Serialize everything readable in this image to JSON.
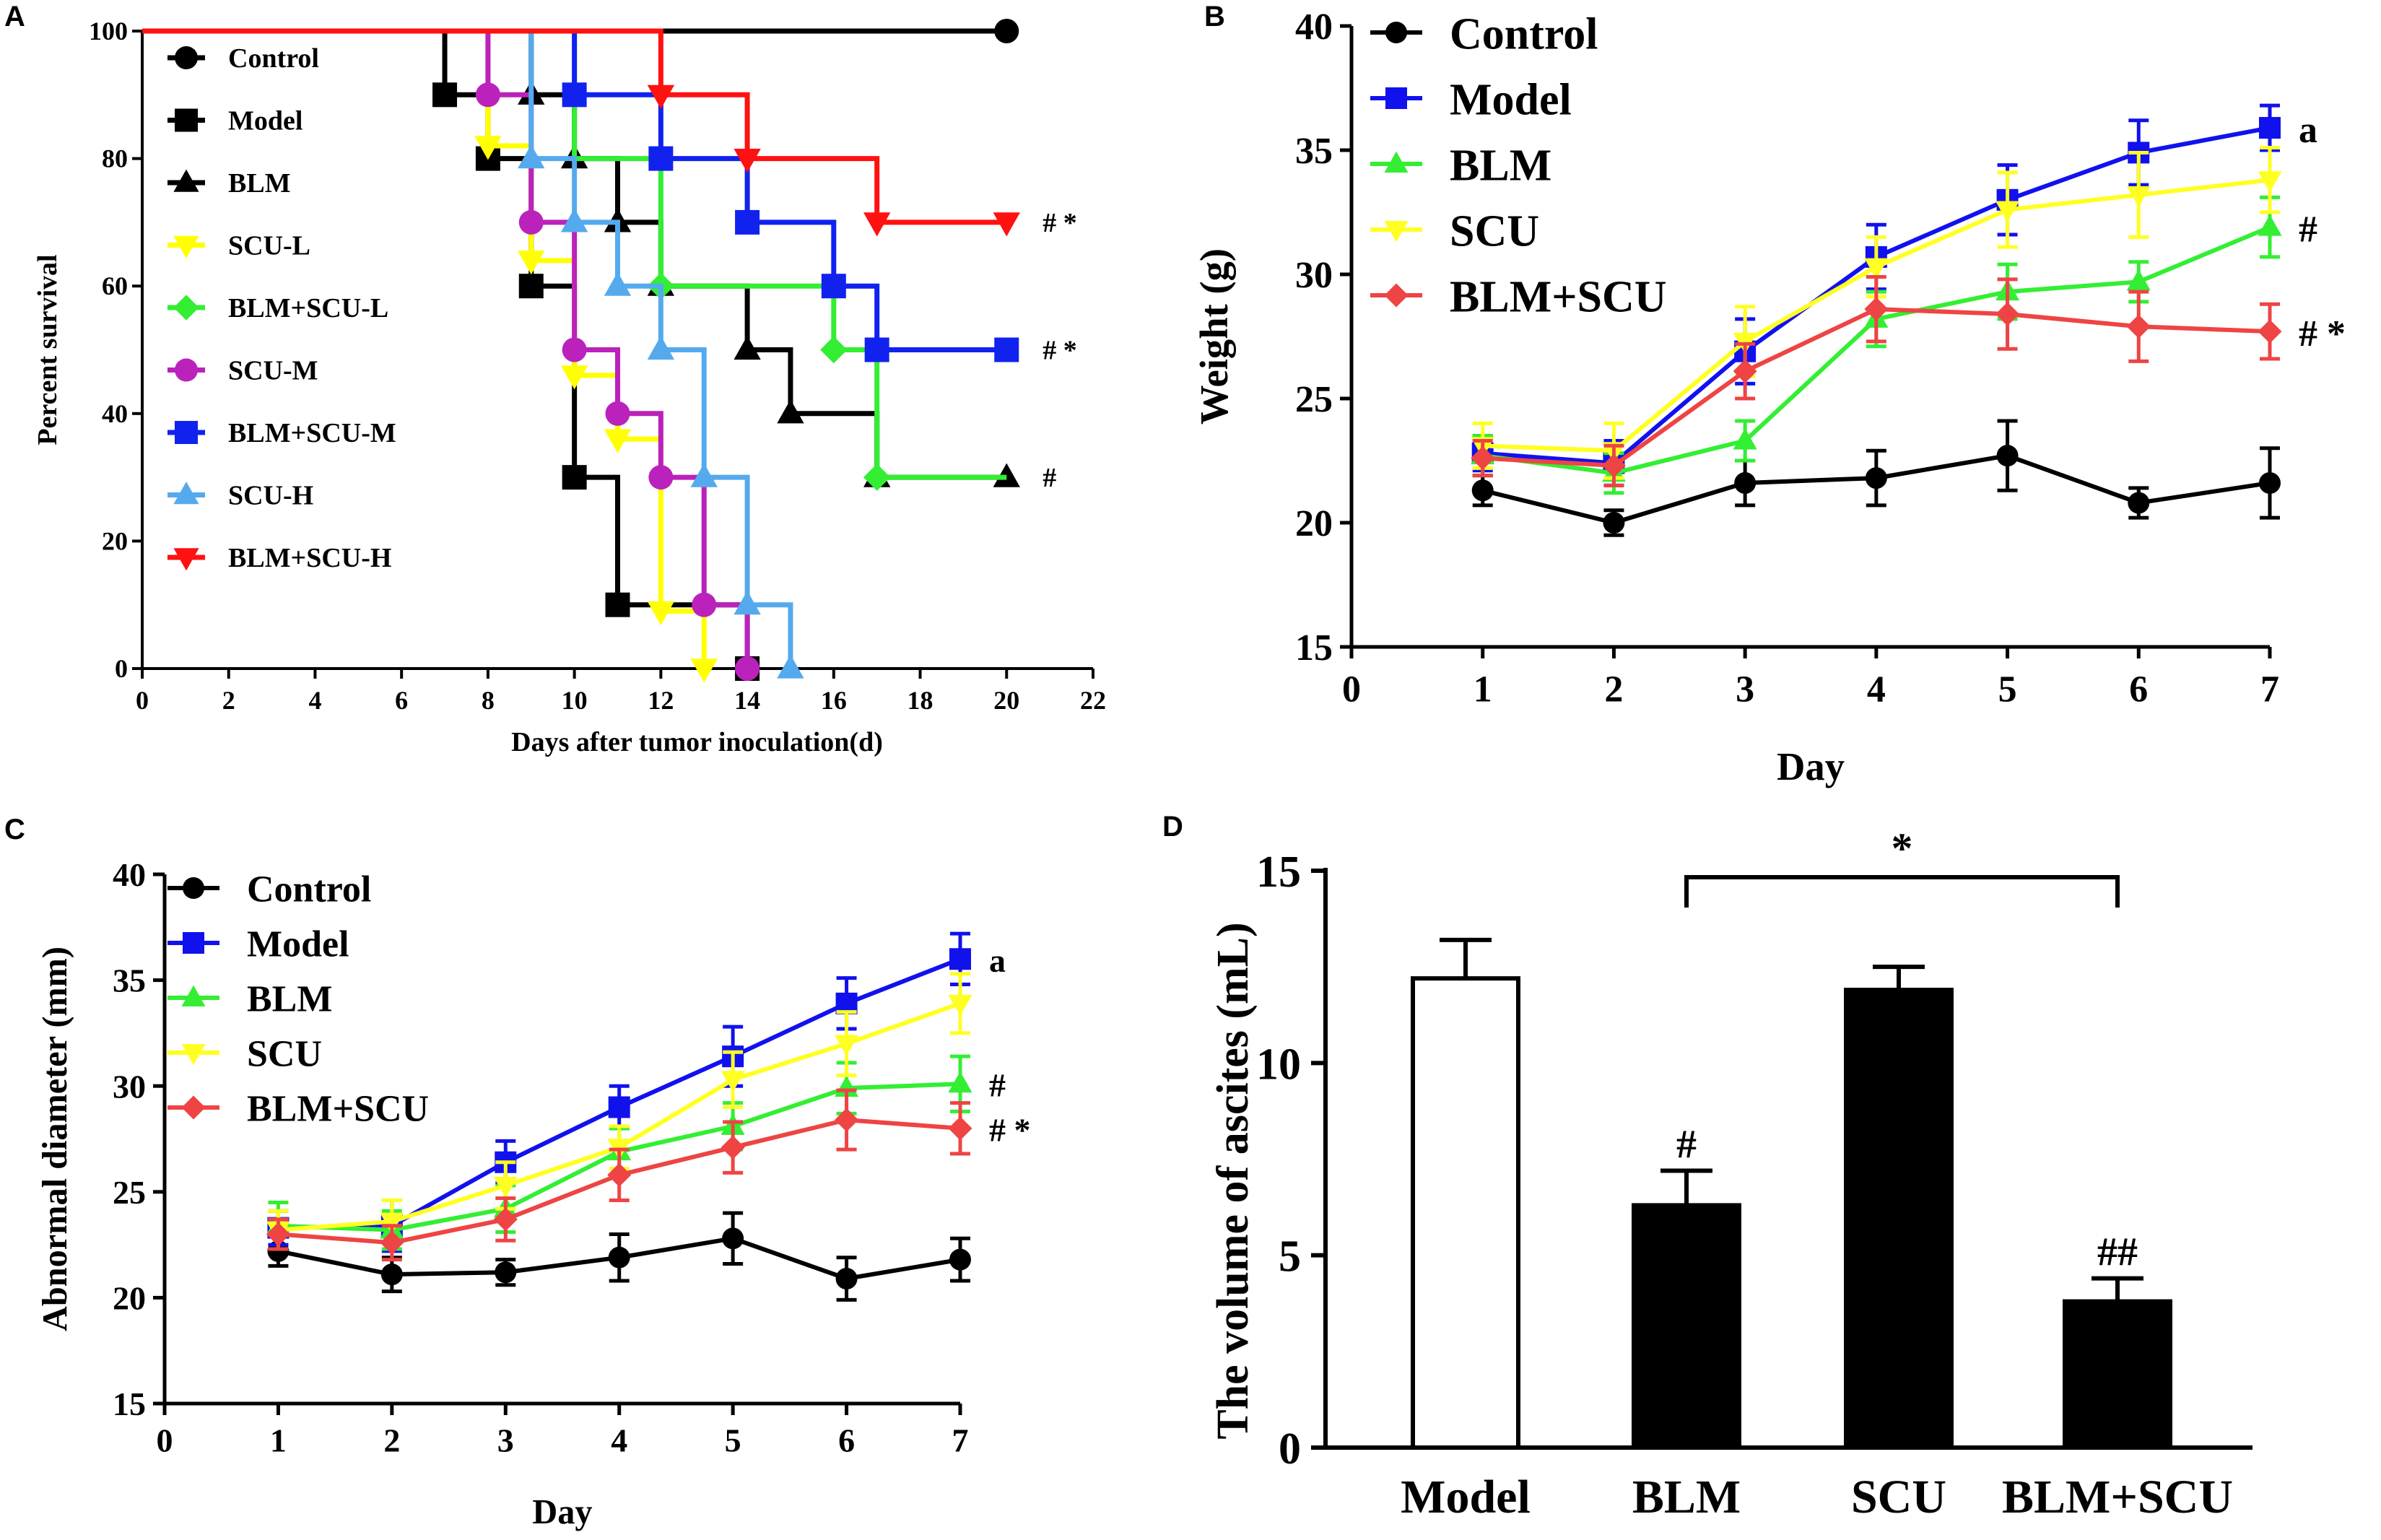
{
  "chart_data": [
    {
      "panel": "A",
      "type": "line",
      "subtype": "kaplan-meier step survival",
      "xlabel": "Days after tumor inoculation(d)",
      "ylabel": "Percent survival",
      "xlim": [
        0,
        22
      ],
      "ylim": [
        0,
        100
      ],
      "xticks": [
        0,
        2,
        4,
        6,
        8,
        10,
        12,
        14,
        16,
        18,
        20,
        22
      ],
      "yticks": [
        0,
        20,
        40,
        60,
        80,
        100
      ],
      "grid": false,
      "legend": "top-left",
      "series": [
        {
          "name": "Control",
          "color": "#000000",
          "marker": "circle",
          "points": [
            [
              0,
              100
            ],
            [
              20,
              100
            ]
          ],
          "censor": [
            [
              20,
              100
            ]
          ]
        },
        {
          "name": "Model",
          "color": "#000000",
          "marker": "square",
          "points": [
            [
              0,
              100
            ],
            [
              7,
              100
            ],
            [
              7,
              90
            ],
            [
              8,
              90
            ],
            [
              8,
              80
            ],
            [
              9,
              80
            ],
            [
              9,
              60
            ],
            [
              10,
              60
            ],
            [
              10,
              30
            ],
            [
              11,
              30
            ],
            [
              11,
              10
            ],
            [
              14,
              10
            ],
            [
              14,
              0
            ]
          ],
          "censor": [
            [
              7,
              90
            ],
            [
              8,
              80
            ],
            [
              9,
              60
            ],
            [
              10,
              30
            ],
            [
              11,
              10
            ],
            [
              14,
              0
            ]
          ]
        },
        {
          "name": "BLM",
          "color": "#000000",
          "marker": "triangle",
          "points": [
            [
              0,
              100
            ],
            [
              9,
              100
            ],
            [
              9,
              90
            ],
            [
              10,
              90
            ],
            [
              10,
              80
            ],
            [
              11,
              80
            ],
            [
              11,
              70
            ],
            [
              12,
              70
            ],
            [
              12,
              60
            ],
            [
              14,
              60
            ],
            [
              14,
              50
            ],
            [
              15,
              50
            ],
            [
              15,
              40
            ],
            [
              17,
              40
            ],
            [
              17,
              30
            ],
            [
              20,
              30
            ]
          ],
          "censor": [
            [
              9,
              90
            ],
            [
              10,
              80
            ],
            [
              11,
              70
            ],
            [
              12,
              60
            ],
            [
              14,
              50
            ],
            [
              15,
              40
            ],
            [
              17,
              30
            ],
            [
              20,
              30
            ]
          ],
          "annotation": "#"
        },
        {
          "name": "SCU-L",
          "color": "#ffff00",
          "marker": "triangle-down",
          "points": [
            [
              0,
              100
            ],
            [
              8,
              100
            ],
            [
              8,
              82
            ],
            [
              9,
              82
            ],
            [
              9,
              64
            ],
            [
              10,
              64
            ],
            [
              10,
              46
            ],
            [
              11,
              46
            ],
            [
              11,
              36
            ],
            [
              12,
              36
            ],
            [
              12,
              9
            ],
            [
              13,
              9
            ],
            [
              13,
              0
            ]
          ],
          "censor": [
            [
              8,
              82
            ],
            [
              9,
              64
            ],
            [
              10,
              46
            ],
            [
              11,
              36
            ],
            [
              12,
              9
            ],
            [
              13,
              0
            ]
          ]
        },
        {
          "name": "BLM+SCU-L",
          "color": "#33ee33",
          "marker": "diamond",
          "points": [
            [
              0,
              100
            ],
            [
              10,
              100
            ],
            [
              10,
              80
            ],
            [
              12,
              80
            ],
            [
              12,
              60
            ],
            [
              16,
              60
            ],
            [
              16,
              50
            ],
            [
              17,
              50
            ],
            [
              17,
              30
            ],
            [
              20,
              30
            ]
          ],
          "censor": [
            [
              12,
              60
            ],
            [
              16,
              50
            ],
            [
              17,
              30
            ]
          ]
        },
        {
          "name": "SCU-M",
          "color": "#bb22bb",
          "marker": "circle",
          "points": [
            [
              0,
              100
            ],
            [
              8,
              100
            ],
            [
              8,
              90
            ],
            [
              9,
              90
            ],
            [
              9,
              70
            ],
            [
              10,
              70
            ],
            [
              10,
              50
            ],
            [
              11,
              50
            ],
            [
              11,
              40
            ],
            [
              12,
              40
            ],
            [
              12,
              30
            ],
            [
              13,
              30
            ],
            [
              13,
              10
            ],
            [
              14,
              10
            ],
            [
              14,
              0
            ]
          ],
          "censor": [
            [
              8,
              90
            ],
            [
              9,
              70
            ],
            [
              10,
              50
            ],
            [
              11,
              40
            ],
            [
              12,
              30
            ],
            [
              13,
              10
            ],
            [
              14,
              0
            ]
          ]
        },
        {
          "name": "BLM+SCU-M",
          "color": "#1122ee",
          "marker": "square",
          "points": [
            [
              0,
              100
            ],
            [
              10,
              100
            ],
            [
              10,
              90
            ],
            [
              12,
              90
            ],
            [
              12,
              80
            ],
            [
              14,
              80
            ],
            [
              14,
              70
            ],
            [
              16,
              70
            ],
            [
              16,
              60
            ],
            [
              17,
              60
            ],
            [
              17,
              50
            ],
            [
              20,
              50
            ]
          ],
          "censor": [
            [
              10,
              90
            ],
            [
              12,
              80
            ],
            [
              14,
              70
            ],
            [
              16,
              60
            ],
            [
              17,
              50
            ],
            [
              20,
              50
            ]
          ],
          "annotation": "# *"
        },
        {
          "name": "SCU-H",
          "color": "#55aaee",
          "marker": "triangle",
          "points": [
            [
              0,
              100
            ],
            [
              9,
              100
            ],
            [
              9,
              80
            ],
            [
              10,
              80
            ],
            [
              10,
              70
            ],
            [
              11,
              70
            ],
            [
              11,
              60
            ],
            [
              12,
              60
            ],
            [
              12,
              50
            ],
            [
              13,
              50
            ],
            [
              13,
              30
            ],
            [
              14,
              30
            ],
            [
              14,
              10
            ],
            [
              15,
              10
            ],
            [
              15,
              0
            ]
          ],
          "censor": [
            [
              9,
              80
            ],
            [
              10,
              70
            ],
            [
              11,
              60
            ],
            [
              12,
              50
            ],
            [
              13,
              30
            ],
            [
              14,
              10
            ],
            [
              15,
              0
            ]
          ]
        },
        {
          "name": "BLM+SCU-H",
          "color": "#ff1111",
          "marker": "triangle-down",
          "points": [
            [
              0,
              100
            ],
            [
              12,
              100
            ],
            [
              12,
              90
            ],
            [
              14,
              90
            ],
            [
              14,
              80
            ],
            [
              17,
              80
            ],
            [
              17,
              70
            ],
            [
              20,
              70
            ]
          ],
          "censor": [
            [
              12,
              90
            ],
            [
              14,
              80
            ],
            [
              17,
              70
            ],
            [
              20,
              70
            ]
          ],
          "annotation": "# *"
        }
      ]
    },
    {
      "panel": "B",
      "type": "line",
      "xlabel": "Day",
      "ylabel": "Weight (g)",
      "xlim": [
        0,
        7
      ],
      "ylim": [
        15,
        40
      ],
      "xticks": [
        0,
        1,
        2,
        3,
        4,
        5,
        6,
        7
      ],
      "yticks": [
        15,
        20,
        25,
        30,
        35,
        40
      ],
      "grid": false,
      "legend": "top-left",
      "x": [
        1,
        2,
        3,
        4,
        5,
        6,
        7
      ],
      "series": [
        {
          "name": "Control",
          "color": "#000000",
          "marker": "circle",
          "values": [
            21.3,
            20.0,
            21.6,
            21.8,
            22.7,
            20.8,
            21.6
          ],
          "err": [
            0.6,
            0.5,
            0.9,
            1.1,
            1.4,
            0.6,
            1.4
          ]
        },
        {
          "name": "Model",
          "color": "#1111ee",
          "marker": "square",
          "values": [
            22.8,
            22.4,
            26.9,
            30.7,
            33.0,
            34.9,
            35.9
          ],
          "err": [
            0.7,
            0.9,
            1.3,
            1.3,
            1.4,
            1.3,
            0.9
          ],
          "annotation": "a"
        },
        {
          "name": "BLM",
          "color": "#33ee33",
          "marker": "triangle",
          "values": [
            22.7,
            22.0,
            23.3,
            28.2,
            29.3,
            29.7,
            31.9
          ],
          "err": [
            0.8,
            0.8,
            0.8,
            1.1,
            1.1,
            0.8,
            1.2
          ],
          "annotation": "#"
        },
        {
          "name": "SCU",
          "color": "#ffff22",
          "marker": "triangle-down",
          "values": [
            23.1,
            22.9,
            27.3,
            30.3,
            32.6,
            33.2,
            33.8
          ],
          "err": [
            0.9,
            1.1,
            1.4,
            1.2,
            1.5,
            1.7,
            1.3
          ]
        },
        {
          "name": "BLM+SCU",
          "color": "#ee4444",
          "marker": "diamond",
          "values": [
            22.6,
            22.3,
            26.1,
            28.6,
            28.4,
            27.9,
            27.7
          ],
          "err": [
            0.7,
            0.8,
            1.1,
            1.3,
            1.4,
            1.4,
            1.1
          ],
          "annotation": "# *"
        }
      ]
    },
    {
      "panel": "C",
      "type": "line",
      "xlabel": "Day",
      "ylabel": "Abnormal diameter (mm)",
      "xlim": [
        0,
        7
      ],
      "ylim": [
        15,
        40
      ],
      "xticks": [
        0,
        1,
        2,
        3,
        4,
        5,
        6,
        7
      ],
      "yticks": [
        15,
        20,
        25,
        30,
        35,
        40
      ],
      "grid": false,
      "legend": "top-left",
      "x": [
        1,
        2,
        3,
        4,
        5,
        6,
        7
      ],
      "series": [
        {
          "name": "Control",
          "color": "#000000",
          "marker": "circle",
          "values": [
            22.2,
            21.1,
            21.2,
            21.9,
            22.8,
            20.9,
            21.8
          ],
          "err": [
            0.7,
            0.8,
            0.6,
            1.1,
            1.2,
            1.0,
            1.0
          ]
        },
        {
          "name": "Model",
          "color": "#1111ee",
          "marker": "square",
          "values": [
            23.3,
            23.4,
            26.4,
            29.0,
            31.4,
            33.9,
            36.0
          ],
          "err": [
            0.8,
            1.2,
            1.0,
            1.0,
            1.4,
            1.2,
            1.2
          ],
          "annotation": "a"
        },
        {
          "name": "BLM",
          "color": "#33ee33",
          "marker": "triangle",
          "values": [
            23.4,
            23.2,
            24.2,
            26.9,
            28.1,
            29.9,
            30.1
          ],
          "err": [
            1.1,
            0.9,
            1.1,
            1.1,
            1.1,
            1.2,
            1.3
          ],
          "annotation": "#"
        },
        {
          "name": "SCU",
          "color": "#ffff22",
          "marker": "triangle-down",
          "values": [
            23.2,
            23.6,
            25.3,
            27.1,
            30.3,
            32.0,
            33.9
          ],
          "err": [
            0.9,
            1.0,
            1.1,
            1.0,
            1.3,
            1.5,
            1.4
          ]
        },
        {
          "name": "BLM+SCU",
          "color": "#ee4444",
          "marker": "diamond",
          "values": [
            23.0,
            22.6,
            23.7,
            25.8,
            27.1,
            28.4,
            28.0
          ],
          "err": [
            0.7,
            0.8,
            1.0,
            1.2,
            1.2,
            1.4,
            1.2
          ],
          "annotation": "# *"
        }
      ]
    },
    {
      "panel": "D",
      "type": "bar",
      "xlabel": "",
      "ylabel": "The volume of ascites (mL)",
      "ylim": [
        0,
        15
      ],
      "yticks": [
        0,
        5,
        10,
        15
      ],
      "grid": false,
      "categories": [
        "Model",
        "BLM",
        "SCU",
        "BLM+SCU"
      ],
      "values": [
        12.2,
        6.3,
        11.9,
        3.8
      ],
      "err": [
        1.0,
        0.9,
        0.6,
        0.6
      ],
      "fills": [
        "#ffffff",
        "#000000",
        "#000000",
        "#000000"
      ],
      "bar_labels": [
        "",
        "#",
        "",
        "##"
      ],
      "bracket": {
        "from": 1,
        "to": 3,
        "label": "*"
      }
    }
  ],
  "panel_labels": [
    "A",
    "B",
    "C",
    "D"
  ]
}
